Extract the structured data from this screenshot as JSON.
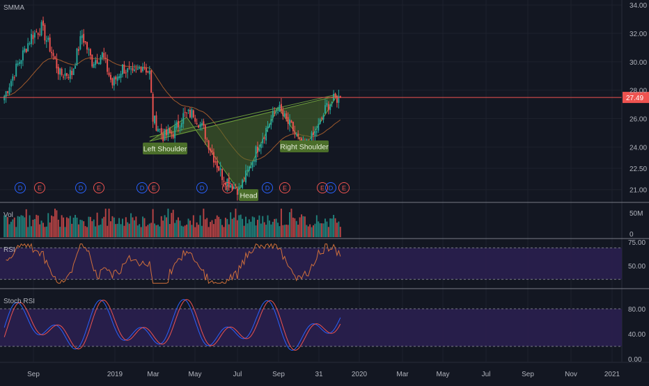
{
  "colors": {
    "background": "#131722",
    "grid": "#1e222d",
    "axis_text": "#b2b5be",
    "up": "#26a69a",
    "down": "#ef5350",
    "price_line": "#ef5350",
    "smma": "#a05a2c",
    "pattern_fill": "#4a6b2a",
    "pattern_stroke": "#6e9f3c",
    "label_bg": "#4b6e2a",
    "rsi_band": "#2a1f4f",
    "rsi_line": "#d1703a",
    "stoch_k": "#2962ff",
    "stoch_d": "#ef5350",
    "dividend": "#2962ff",
    "earnings": "#ef5350"
  },
  "chart_data": {
    "type": "candlestick",
    "ticker_study": "SMMA",
    "current_price_label": "27.49",
    "price_axis": {
      "ylim": [
        20.3,
        34.2
      ],
      "ticks": [
        "34.00",
        "32.00",
        "30.00",
        "28.00",
        "26.00",
        "24.00",
        "22.50",
        "21.00"
      ]
    },
    "time_axis": {
      "labels": [
        "Sep",
        "2019",
        "Mar",
        "May",
        "Jul",
        "Sep",
        "31",
        "2020",
        "Mar",
        "May",
        "Jul",
        "Sep",
        "Nov",
        "2021"
      ]
    },
    "pattern": {
      "name": "inverse head and shoulders",
      "labels": {
        "left": "Left Shoulder",
        "head": "Head",
        "right": "Right Shoulder"
      }
    },
    "events": [
      {
        "type": "D",
        "label": "D"
      },
      {
        "type": "E",
        "label": "E"
      },
      {
        "type": "D",
        "label": "D"
      },
      {
        "type": "E",
        "label": "E"
      },
      {
        "type": "D",
        "label": "D"
      },
      {
        "type": "E",
        "label": "E"
      },
      {
        "type": "D",
        "label": "D"
      },
      {
        "type": "E",
        "label": "E"
      },
      {
        "type": "D",
        "label": "D"
      },
      {
        "type": "E",
        "label": "E"
      },
      {
        "type": "E",
        "label": "E"
      },
      {
        "type": "D",
        "label": "D"
      },
      {
        "type": "E",
        "label": "E"
      }
    ],
    "volume": {
      "title": "Vol",
      "ticks": [
        "50M",
        "0"
      ]
    },
    "rsi": {
      "title": "RSI",
      "ticks": [
        "75.00",
        "50.00"
      ],
      "band": [
        30,
        70
      ]
    },
    "stoch_rsi": {
      "title": "Stoch RSI",
      "ticks": [
        "80.00",
        "40.00",
        "0.00"
      ],
      "band": [
        20,
        80
      ]
    },
    "price_series_waypoints": [
      [
        0,
        27.6
      ],
      [
        8,
        29.8
      ],
      [
        16,
        31.8
      ],
      [
        22,
        32.4
      ],
      [
        27,
        31.0
      ],
      [
        33,
        29.1
      ],
      [
        40,
        29.2
      ],
      [
        46,
        31.9
      ],
      [
        52,
        30.0
      ],
      [
        58,
        30.5
      ],
      [
        64,
        28.4
      ],
      [
        70,
        29.6
      ],
      [
        76,
        29.0
      ],
      [
        82,
        29.8
      ],
      [
        86,
        29.2
      ],
      [
        88,
        26.0
      ],
      [
        94,
        24.8
      ],
      [
        100,
        25.0
      ],
      [
        106,
        26.2
      ],
      [
        112,
        26.4
      ],
      [
        118,
        25.2
      ],
      [
        124,
        23.3
      ],
      [
        129,
        22.0
      ],
      [
        134,
        21.4
      ],
      [
        139,
        21.0
      ],
      [
        144,
        22.2
      ],
      [
        150,
        24.0
      ],
      [
        156,
        25.5
      ],
      [
        162,
        26.8
      ],
      [
        166,
        26.0
      ],
      [
        171,
        25.2
      ],
      [
        176,
        24.0
      ],
      [
        181,
        24.4
      ],
      [
        186,
        25.4
      ],
      [
        191,
        26.9
      ],
      [
        196,
        27.4
      ],
      [
        200,
        27.49
      ]
    ]
  }
}
